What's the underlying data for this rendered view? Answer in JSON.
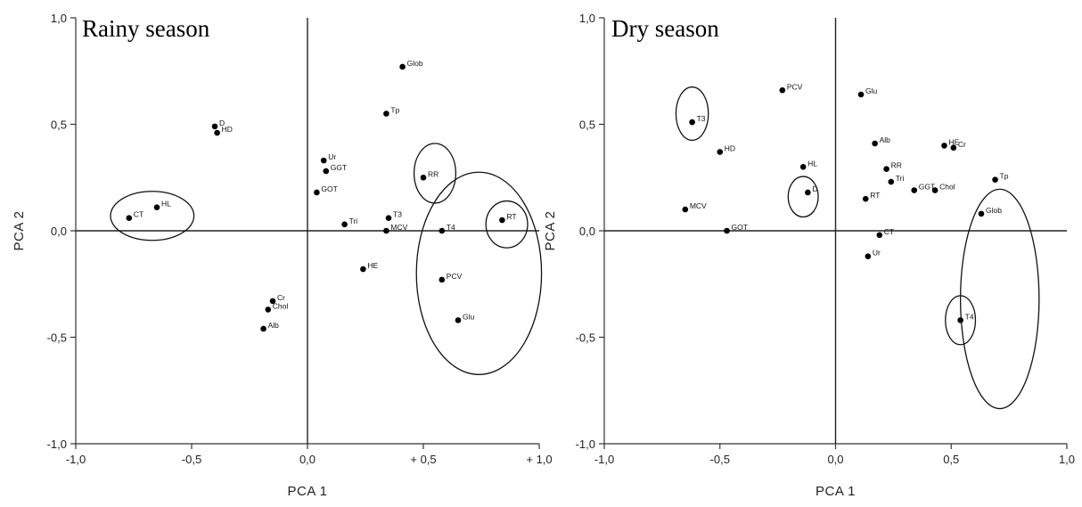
{
  "chart_data": [
    {
      "type": "scatter",
      "title": "Rainy season",
      "xlabel": "PCA 1",
      "ylabel": "PCA 2",
      "xlim": [
        -1.0,
        1.0
      ],
      "ylim": [
        -1.0,
        1.0
      ],
      "x_ticks": [
        "-1,0",
        "-0,5",
        "0,0",
        "+ 0,5",
        "+ 1,0"
      ],
      "y_ticks": [
        "1,0",
        "0,5",
        "0,0",
        "-0,5",
        "-1,0"
      ],
      "points": [
        {
          "label": "Glob",
          "x": 0.41,
          "y": 0.77
        },
        {
          "label": "Tp",
          "x": 0.34,
          "y": 0.55
        },
        {
          "label": "D",
          "x": -0.4,
          "y": 0.49
        },
        {
          "label": "HD",
          "x": -0.39,
          "y": 0.46
        },
        {
          "label": "Ur",
          "x": 0.07,
          "y": 0.33
        },
        {
          "label": "GGT",
          "x": 0.08,
          "y": 0.28
        },
        {
          "label": "RR",
          "x": 0.5,
          "y": 0.25
        },
        {
          "label": "GOT",
          "x": 0.04,
          "y": 0.18
        },
        {
          "label": "HL",
          "x": -0.65,
          "y": 0.11
        },
        {
          "label": "CT",
          "x": -0.77,
          "y": 0.06
        },
        {
          "label": "T3",
          "x": 0.35,
          "y": 0.06
        },
        {
          "label": "RT",
          "x": 0.84,
          "y": 0.05
        },
        {
          "label": "Tri",
          "x": 0.16,
          "y": 0.03
        },
        {
          "label": "MCV",
          "x": 0.34,
          "y": 0.0
        },
        {
          "label": "T4",
          "x": 0.58,
          "y": 0.0
        },
        {
          "label": "HE",
          "x": 0.24,
          "y": -0.18
        },
        {
          "label": "PCV",
          "x": 0.58,
          "y": -0.23
        },
        {
          "label": "Cr",
          "x": -0.15,
          "y": -0.33
        },
        {
          "label": "Chol",
          "x": -0.17,
          "y": -0.37
        },
        {
          "label": "Glu",
          "x": 0.65,
          "y": -0.42
        },
        {
          "label": "Alb",
          "x": -0.19,
          "y": -0.46
        }
      ],
      "groupings": [
        {
          "cx": -0.67,
          "cy": 0.07,
          "rx": 0.18,
          "ry": 0.115
        },
        {
          "cx": 0.55,
          "cy": 0.27,
          "rx": 0.09,
          "ry": 0.14
        },
        {
          "cx": 0.74,
          "cy": -0.2,
          "rx": 0.27,
          "ry": 0.475
        },
        {
          "cx": 0.86,
          "cy": 0.03,
          "rx": 0.09,
          "ry": 0.11
        }
      ]
    },
    {
      "type": "scatter",
      "title": "Dry season",
      "xlabel": "PCA 1",
      "ylabel": "PCA 2",
      "xlim": [
        -1.0,
        1.0
      ],
      "ylim": [
        -1.0,
        1.0
      ],
      "x_ticks": [
        "-1,0",
        "-0,5",
        "0,0",
        "0,5",
        "1,0"
      ],
      "y_ticks": [
        "1,0",
        "0,5",
        "0,0",
        "-0,5",
        "-1,0"
      ],
      "points": [
        {
          "label": "PCV",
          "x": -0.23,
          "y": 0.66
        },
        {
          "label": "Glu",
          "x": 0.11,
          "y": 0.64
        },
        {
          "label": "T3",
          "x": -0.62,
          "y": 0.51
        },
        {
          "label": "Alb",
          "x": 0.17,
          "y": 0.41
        },
        {
          "label": "HD",
          "x": -0.5,
          "y": 0.37
        },
        {
          "label": "HE",
          "x": 0.47,
          "y": 0.4
        },
        {
          "label": "Cr",
          "x": 0.51,
          "y": 0.39
        },
        {
          "label": "HL",
          "x": -0.14,
          "y": 0.3
        },
        {
          "label": "RR",
          "x": 0.22,
          "y": 0.29
        },
        {
          "label": "Tri",
          "x": 0.24,
          "y": 0.23
        },
        {
          "label": "Tp",
          "x": 0.69,
          "y": 0.24
        },
        {
          "label": "GGT",
          "x": 0.34,
          "y": 0.19
        },
        {
          "label": "Chol",
          "x": 0.43,
          "y": 0.19
        },
        {
          "label": "D",
          "x": -0.12,
          "y": 0.18
        },
        {
          "label": "RT",
          "x": 0.13,
          "y": 0.15
        },
        {
          "label": "MCV",
          "x": -0.65,
          "y": 0.1
        },
        {
          "label": "Glob",
          "x": 0.63,
          "y": 0.08
        },
        {
          "label": "GOT",
          "x": -0.47,
          "y": 0.0
        },
        {
          "label": "CT",
          "x": 0.19,
          "y": -0.02
        },
        {
          "label": "Ur",
          "x": 0.14,
          "y": -0.12
        },
        {
          "label": "T4",
          "x": 0.54,
          "y": -0.42
        }
      ],
      "groupings": [
        {
          "cx": -0.62,
          "cy": 0.55,
          "rx": 0.07,
          "ry": 0.125
        },
        {
          "cx": -0.14,
          "cy": 0.16,
          "rx": 0.065,
          "ry": 0.095
        },
        {
          "cx": 0.71,
          "cy": -0.32,
          "rx": 0.17,
          "ry": 0.515
        },
        {
          "cx": 0.54,
          "cy": -0.42,
          "rx": 0.065,
          "ry": 0.115
        }
      ]
    }
  ]
}
